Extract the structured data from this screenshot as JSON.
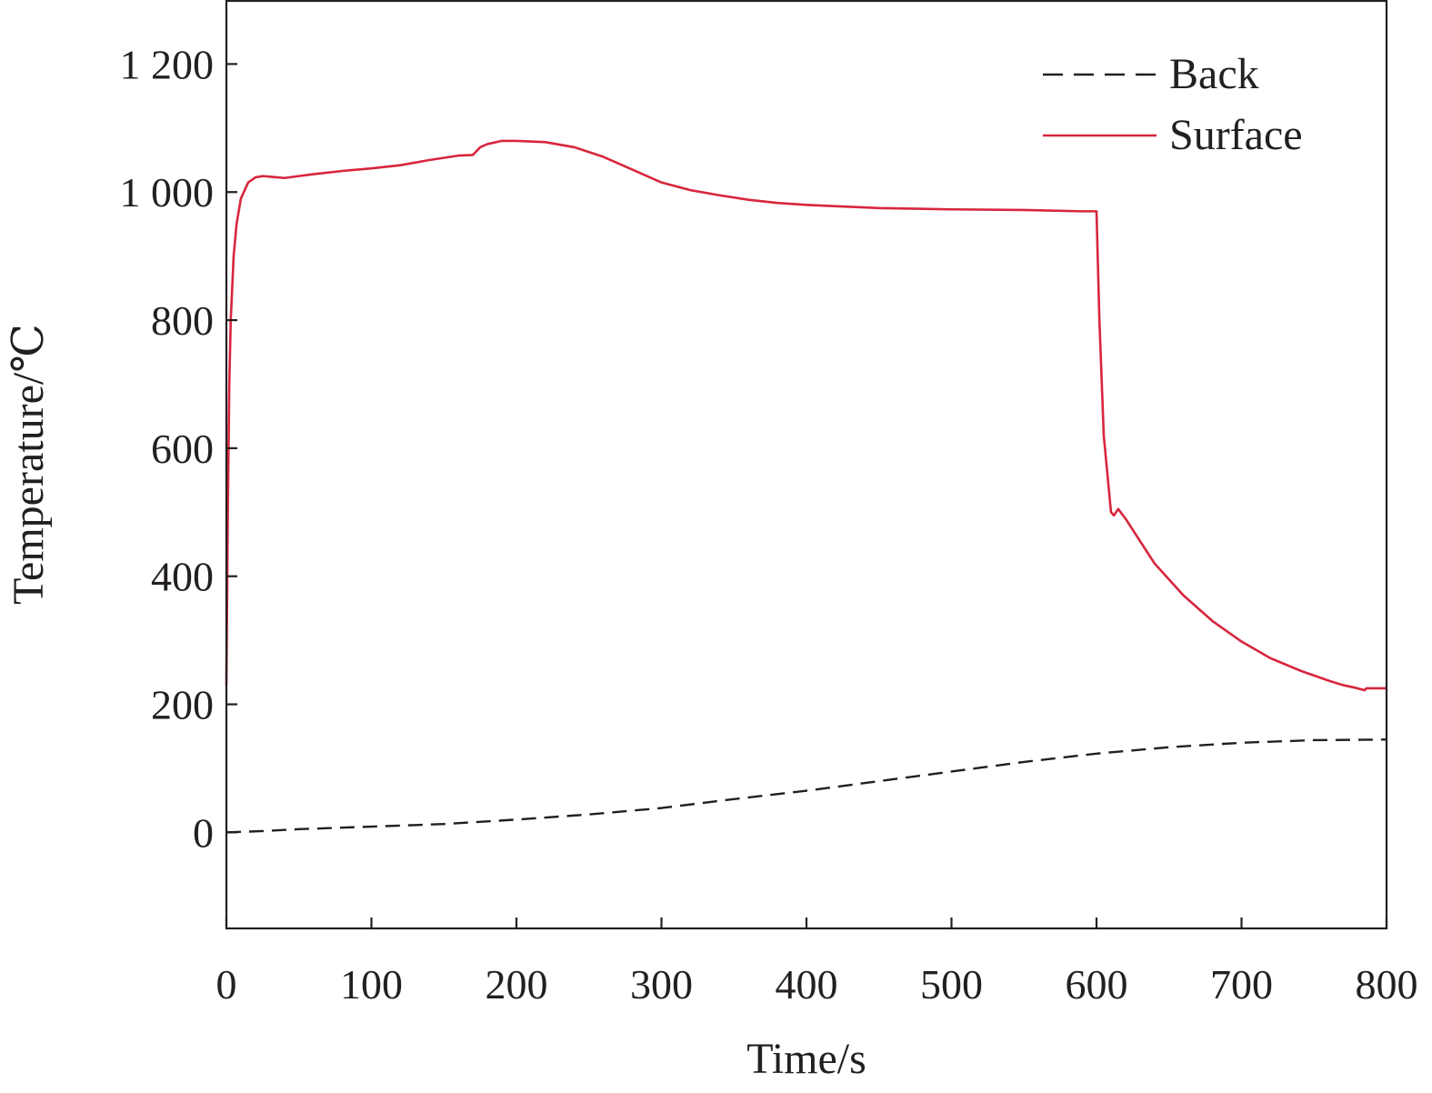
{
  "chart_data": {
    "type": "line",
    "title": "",
    "xlabel": "Time/s",
    "ylabel": "Temperature/℃",
    "xlim": [
      0,
      800
    ],
    "ylim": [
      -150,
      1300
    ],
    "x_ticks": [
      0,
      100,
      200,
      300,
      400,
      500,
      600,
      700,
      800
    ],
    "x_tick_labels": [
      "0",
      "100",
      "200",
      "300",
      "400",
      "500",
      "600",
      "700",
      "800"
    ],
    "y_ticks": [
      0,
      200,
      400,
      600,
      800,
      1000,
      1200
    ],
    "y_tick_labels": [
      "0",
      "200",
      "400",
      "600",
      "800",
      "1 000",
      "1 200"
    ],
    "grid": false,
    "legend_position": "top-right",
    "series": [
      {
        "name": "Back",
        "color": "#231f20",
        "style": "dashed",
        "x": [
          0,
          25,
          50,
          100,
          150,
          200,
          250,
          300,
          350,
          400,
          450,
          500,
          550,
          600,
          650,
          700,
          750,
          800
        ],
        "y": [
          0,
          2,
          5,
          9,
          13,
          20,
          28,
          38,
          52,
          65,
          80,
          95,
          110,
          123,
          133,
          140,
          144,
          145
        ]
      },
      {
        "name": "Surface",
        "color": "#d7263d",
        "style": "solid",
        "x": [
          0,
          1,
          2,
          3,
          4,
          5,
          7,
          10,
          15,
          20,
          25,
          30,
          40,
          50,
          60,
          80,
          100,
          120,
          140,
          160,
          170,
          175,
          180,
          190,
          200,
          220,
          240,
          260,
          280,
          300,
          320,
          340,
          360,
          380,
          400,
          450,
          500,
          550,
          590,
          600,
          602,
          605,
          610,
          612,
          615,
          620,
          640,
          660,
          680,
          700,
          720,
          740,
          760,
          770,
          780,
          785,
          786,
          790,
          795,
          800
        ],
        "y": [
          230,
          500,
          700,
          800,
          850,
          900,
          950,
          990,
          1015,
          1023,
          1025,
          1024,
          1022,
          1025,
          1028,
          1033,
          1037,
          1042,
          1050,
          1057,
          1058,
          1070,
          1075,
          1080,
          1080,
          1078,
          1070,
          1055,
          1035,
          1015,
          1003,
          995,
          988,
          983,
          980,
          975,
          973,
          972,
          970,
          970,
          800,
          620,
          500,
          495,
          505,
          490,
          420,
          370,
          330,
          298,
          272,
          253,
          237,
          230,
          225,
          222,
          225,
          225,
          225,
          225
        ]
      }
    ]
  }
}
